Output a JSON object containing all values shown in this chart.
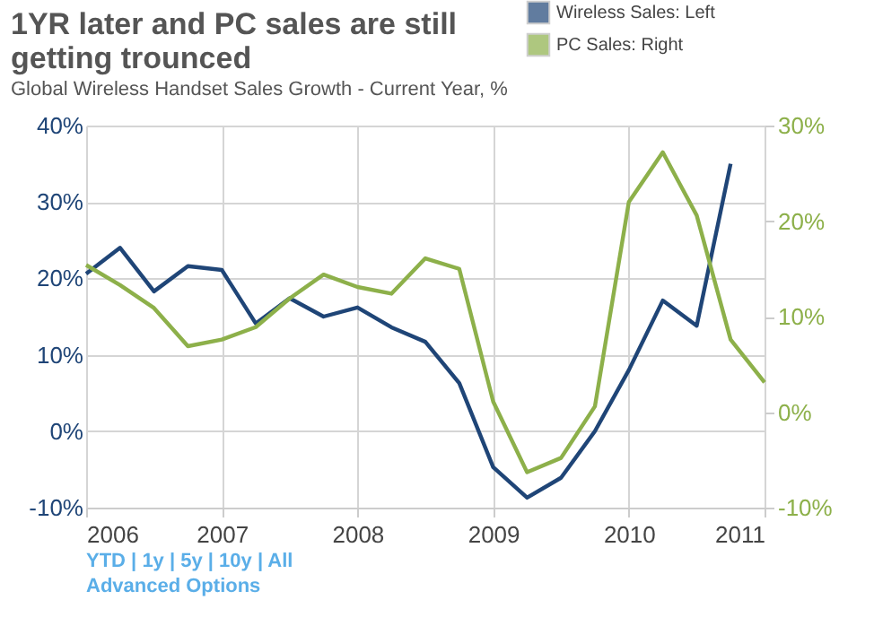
{
  "chart_data": {
    "type": "line",
    "title": "1YR later and PC sales are still getting trounced",
    "subtitle": "Global Wireless Handset Sales Growth - Current Year, %",
    "x": [
      2006.0,
      2006.25,
      2006.5,
      2006.75,
      2007.0,
      2007.25,
      2007.5,
      2007.75,
      2008.0,
      2008.25,
      2008.5,
      2008.75,
      2009.0,
      2009.25,
      2009.5,
      2009.75,
      2010.0,
      2010.25,
      2010.5,
      2010.75,
      2011.0
    ],
    "series": [
      {
        "name": "Wireless Sales: Left",
        "color": "#1f4577",
        "values": [
          20.6,
          24,
          18.3,
          21.6,
          21.1,
          14.1,
          17.4,
          15,
          16.2,
          13.6,
          11.7,
          6.3,
          -4.7,
          -8.7,
          -6.1,
          0,
          8,
          17.1,
          13.8,
          35,
          null
        ]
      },
      {
        "name": "PC Sales: Right",
        "color": "#8db04a",
        "axis": "y2",
        "values": [
          15.4,
          13.3,
          10.9,
          6.9,
          7.6,
          8.9,
          11.9,
          14.4,
          13.1,
          12.4,
          16.1,
          15,
          1.1,
          -6.3,
          -4.8,
          0.6,
          22,
          27.2,
          20.6,
          7.6,
          3.1
        ]
      }
    ],
    "xlim": [
      2006,
      2011
    ],
    "xticks": [
      2006,
      2007,
      2008,
      2009,
      2010,
      2011
    ],
    "ylim": [
      -10,
      40
    ],
    "yticks": [
      {
        "value": -10,
        "label": "-10%"
      },
      {
        "value": 0,
        "label": "0%"
      },
      {
        "value": 10,
        "label": "10%"
      },
      {
        "value": 20,
        "label": "20%"
      },
      {
        "value": 30,
        "label": "30%"
      },
      {
        "value": 40,
        "label": "40%"
      }
    ],
    "y2lim": [
      -10,
      30
    ],
    "y2ticks": [
      {
        "value": -10,
        "label": "-10%"
      },
      {
        "value": 0,
        "label": "0%"
      },
      {
        "value": 10,
        "label": "10%"
      },
      {
        "value": 20,
        "label": "20%"
      },
      {
        "value": 30,
        "label": "30%"
      }
    ],
    "grid": true,
    "legend": "top right",
    "marker": "none",
    "line_style": "solid",
    "annotations": [
      "YTD | 1y | 5y | 10y | All",
      "Advanced Options"
    ]
  }
}
